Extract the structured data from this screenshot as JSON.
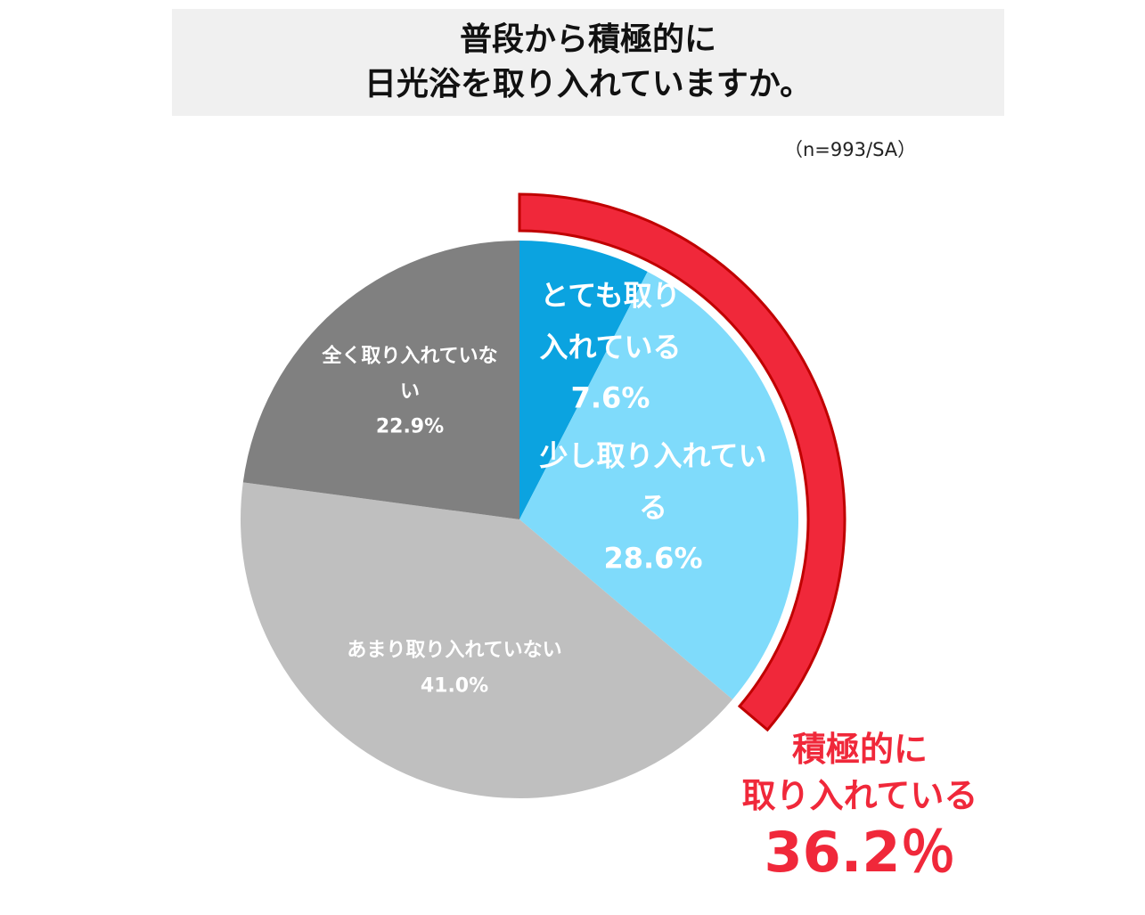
{
  "chart_data": {
    "type": "pie",
    "title": "普段から積極的に\n日光浴を取り入れていますか。",
    "subtitle": "（n=993/SA）",
    "categories": [
      "とても取り入れている",
      "少し取り入れている",
      "あまり取り入れていない",
      "全く取り入れていない"
    ],
    "values": [
      7.6,
      28.6,
      41.0,
      22.9
    ],
    "value_labels": [
      "7.6%",
      "28.6%",
      "41.0%",
      "22.9%"
    ],
    "colors": [
      "#0ba3e0",
      "#7fdbfb",
      "#bfbfbf",
      "#808080"
    ],
    "annotation": {
      "label": "積極的に\n取り入れている",
      "value": 36.2,
      "value_label": "36.2％",
      "color": "#f0283a"
    }
  }
}
